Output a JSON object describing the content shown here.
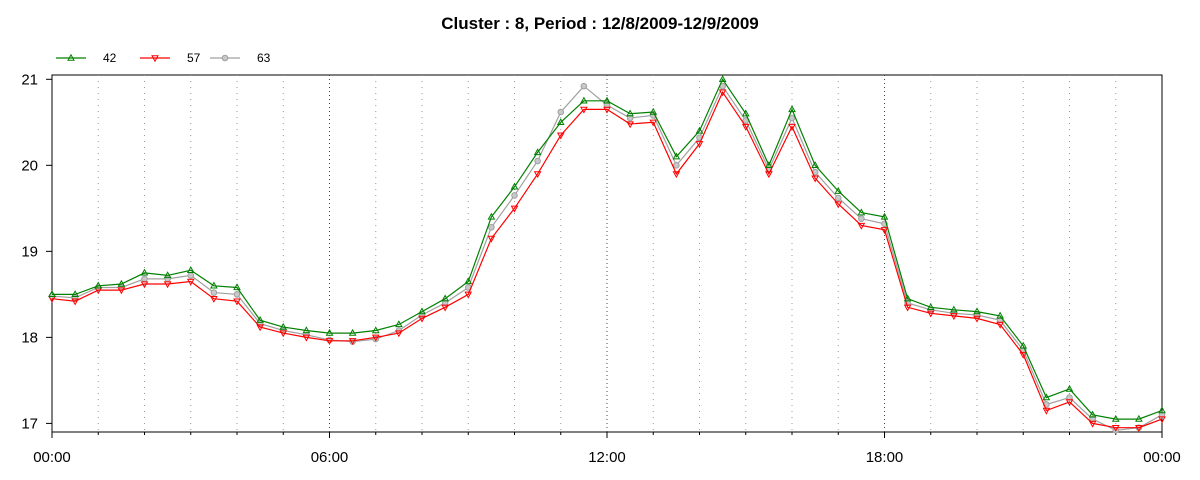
{
  "chart_data": {
    "type": "line",
    "title": "Cluster : 8, Period : 12/8/2009-12/9/2009",
    "xlabel": "",
    "ylabel": "",
    "x_ticks": [
      "00:00",
      "06:00",
      "12:00",
      "18:00",
      "00:00"
    ],
    "y_ticks": [
      "17",
      "18",
      "19",
      "20",
      "21"
    ],
    "xlim": [
      0,
      24
    ],
    "ylim": [
      16.9,
      21.05
    ],
    "grid": true,
    "legend_position": "top-left",
    "x": [
      0,
      0.5,
      1,
      1.5,
      2,
      2.5,
      3,
      3.5,
      4,
      4.5,
      5,
      5.5,
      6,
      6.5,
      7,
      7.5,
      8,
      8.5,
      9,
      9.5,
      10,
      10.5,
      11,
      11.5,
      12,
      12.5,
      13,
      13.5,
      14,
      14.5,
      15,
      15.5,
      16,
      16.5,
      17,
      17.5,
      18,
      18.5,
      19,
      19.5,
      20,
      20.5,
      21,
      21.5,
      22,
      22.5,
      23,
      23.5,
      24
    ],
    "series": [
      {
        "name": "42",
        "color": "#008000",
        "marker": "triangle-up",
        "values": [
          18.5,
          18.5,
          18.6,
          18.62,
          18.75,
          18.72,
          18.78,
          18.6,
          18.58,
          18.2,
          18.12,
          18.08,
          18.05,
          18.05,
          18.08,
          18.15,
          18.3,
          18.45,
          18.65,
          19.4,
          19.75,
          20.15,
          20.5,
          20.75,
          20.75,
          20.6,
          20.62,
          20.1,
          20.4,
          21.0,
          20.6,
          20.0,
          20.65,
          20.0,
          19.7,
          19.45,
          19.4,
          18.45,
          18.35,
          18.32,
          18.3,
          18.25,
          17.9,
          17.3,
          17.4,
          17.1,
          17.05,
          17.05,
          17.15
        ]
      },
      {
        "name": "57",
        "color": "#ff0000",
        "marker": "triangle-down",
        "values": [
          18.45,
          18.42,
          18.55,
          18.55,
          18.62,
          18.62,
          18.65,
          18.45,
          18.42,
          18.12,
          18.05,
          18.0,
          17.96,
          17.96,
          18.0,
          18.05,
          18.22,
          18.35,
          18.5,
          19.15,
          19.5,
          19.9,
          20.35,
          20.65,
          20.65,
          20.48,
          20.5,
          19.9,
          20.25,
          20.85,
          20.45,
          19.9,
          20.45,
          19.85,
          19.55,
          19.3,
          19.25,
          18.35,
          18.28,
          18.25,
          18.22,
          18.15,
          17.8,
          17.15,
          17.25,
          17.0,
          16.95,
          16.95,
          17.05
        ]
      },
      {
        "name": "63",
        "color": "#a0a0a0",
        "marker": "circle",
        "values": [
          18.48,
          18.46,
          18.58,
          18.58,
          18.68,
          18.68,
          18.72,
          18.52,
          18.5,
          18.16,
          18.08,
          18.03,
          17.97,
          17.95,
          17.98,
          18.08,
          18.26,
          18.4,
          18.58,
          19.28,
          19.65,
          20.05,
          20.62,
          20.92,
          20.7,
          20.55,
          20.58,
          20.0,
          20.32,
          20.92,
          20.52,
          19.95,
          20.55,
          19.92,
          19.62,
          19.38,
          19.32,
          18.4,
          18.32,
          18.28,
          18.26,
          18.2,
          17.85,
          17.22,
          17.3,
          17.05,
          16.92,
          16.95,
          17.1
        ]
      }
    ]
  }
}
